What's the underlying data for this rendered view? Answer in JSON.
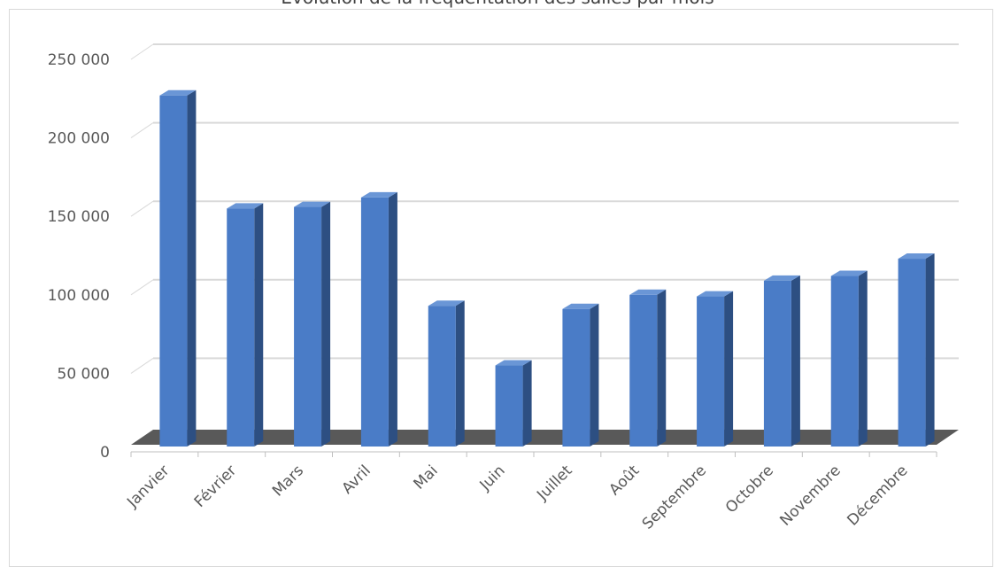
{
  "chart_data": {
    "type": "bar",
    "title": "Évolution de la fréquentation des salles par mois",
    "categories": [
      "Janvier",
      "Février",
      "Mars",
      "Avril",
      "Mai",
      "Juin",
      "Juillet",
      "Août",
      "Septembre",
      "Octobre",
      "Novembre",
      "Décembre"
    ],
    "values": [
      227000,
      155000,
      156000,
      162000,
      93000,
      55000,
      91000,
      100000,
      99000,
      109000,
      112000,
      123000
    ],
    "ylim": [
      0,
      250000
    ],
    "yticks": [
      0,
      50000,
      100000,
      150000,
      200000,
      250000
    ],
    "ytick_labels": [
      "0",
      "50 000",
      "100 000",
      "150 000",
      "200 000",
      "250 000"
    ],
    "grid": true,
    "style": "3d-column",
    "colors": {
      "bar_front": "#4a7cc7",
      "bar_side": "#2d4f82",
      "bar_top": "#6a96d6",
      "floor": "#595959",
      "grid": "#d9d9d9"
    }
  }
}
